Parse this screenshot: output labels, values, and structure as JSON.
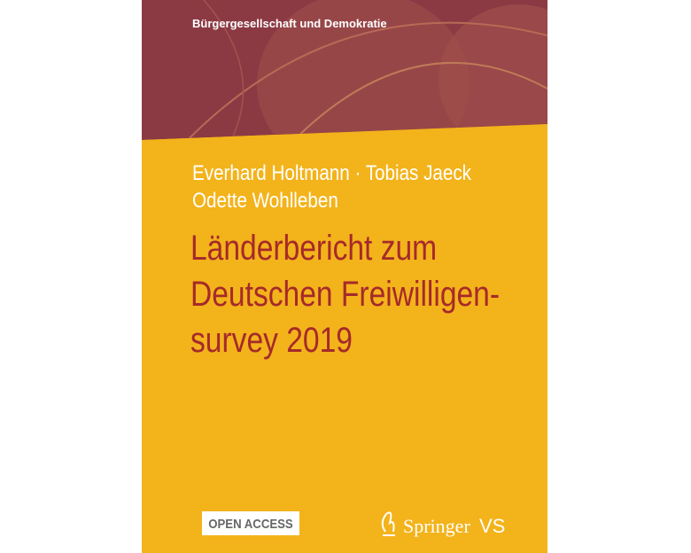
{
  "series": "Bürgergesellschaft und Demokratie",
  "authors": [
    "Everhard Holtmann · Tobias Jaeck",
    "Odette Wohlleben"
  ],
  "title": [
    "Länderbericht zum",
    "Deutschen Freiwilligen-",
    "survey 2019"
  ],
  "badge": "OPEN ACCESS",
  "publisher": {
    "name": "Springer",
    "imprint": "VS"
  }
}
